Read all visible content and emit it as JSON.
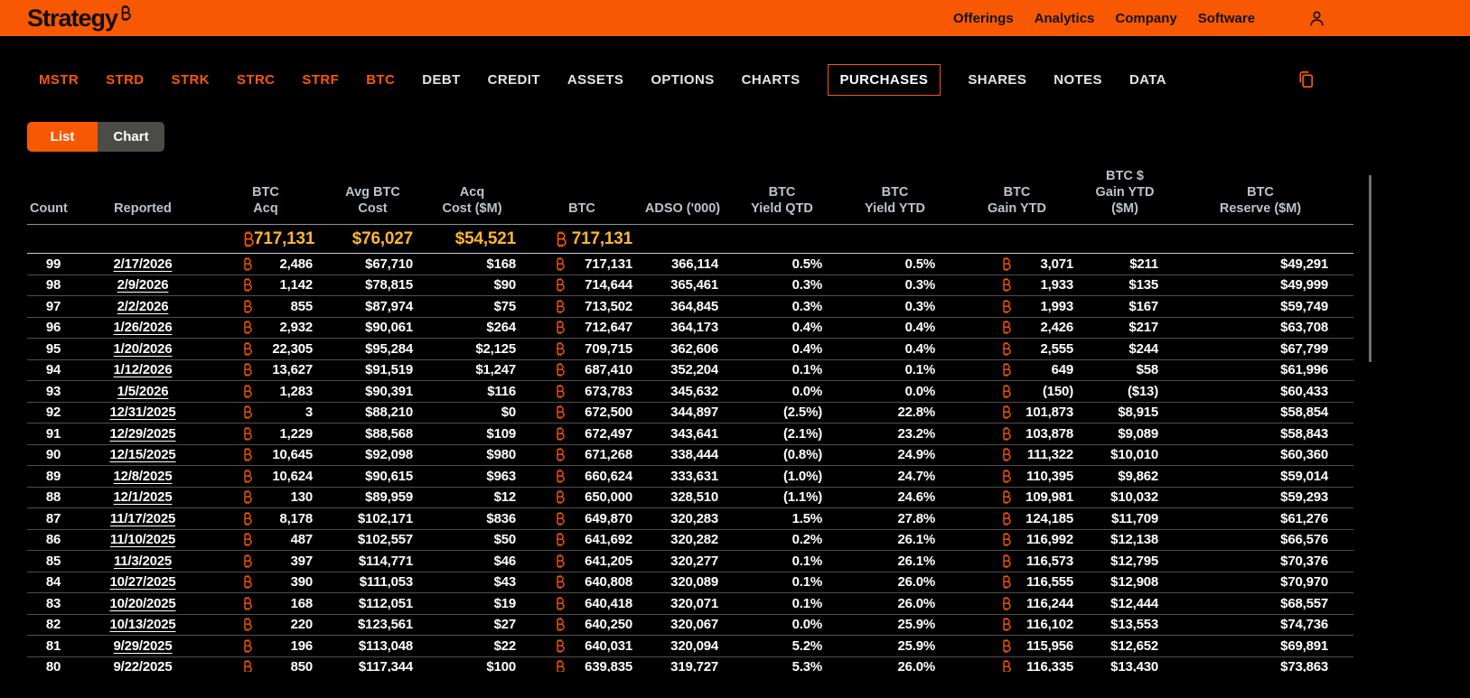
{
  "colors": {
    "accent_orange": "#F95802",
    "summary_gold": "#FFB530"
  },
  "header": {
    "logo_text": "Strategy",
    "nav": [
      {
        "label": "Offerings"
      },
      {
        "label": "Analytics"
      },
      {
        "label": "Company"
      },
      {
        "label": "Software"
      }
    ]
  },
  "tabs": {
    "items": [
      {
        "label": "MSTR",
        "variant": "ticker"
      },
      {
        "label": "STRD",
        "variant": "ticker"
      },
      {
        "label": "STRK",
        "variant": "ticker"
      },
      {
        "label": "STRC",
        "variant": "ticker"
      },
      {
        "label": "STRF",
        "variant": "ticker"
      },
      {
        "label": "BTC",
        "variant": "ticker"
      },
      {
        "label": "DEBT",
        "variant": "plain"
      },
      {
        "label": "CREDIT",
        "variant": "plain"
      },
      {
        "label": "ASSETS",
        "variant": "plain"
      },
      {
        "label": "OPTIONS",
        "variant": "plain"
      },
      {
        "label": "CHARTS",
        "variant": "plain"
      },
      {
        "label": "PURCHASES",
        "variant": "active"
      },
      {
        "label": "SHARES",
        "variant": "plain"
      },
      {
        "label": "NOTES",
        "variant": "plain"
      },
      {
        "label": "DATA",
        "variant": "plain"
      }
    ]
  },
  "toggle": {
    "list_label": "List",
    "chart_label": "Chart"
  },
  "table": {
    "columns": [
      {
        "key": "count",
        "lines": [
          "Count"
        ],
        "type": "text"
      },
      {
        "key": "reported",
        "lines": [
          "Reported"
        ],
        "type": "link"
      },
      {
        "key": "btc_acq",
        "lines": [
          "BTC",
          "Acq"
        ],
        "type": "btc"
      },
      {
        "key": "avg_cost",
        "lines": [
          "Avg BTC",
          "Cost"
        ],
        "type": "num"
      },
      {
        "key": "acq_cost",
        "lines": [
          "Acq",
          "Cost ($M)"
        ],
        "type": "num"
      },
      {
        "key": "btc",
        "lines": [
          "BTC"
        ],
        "type": "btc"
      },
      {
        "key": "adso",
        "lines": [
          "ADSO ('000)"
        ],
        "type": "num"
      },
      {
        "key": "yield_qtd",
        "lines": [
          "BTC",
          "Yield QTD"
        ],
        "type": "num"
      },
      {
        "key": "yield_ytd",
        "lines": [
          "BTC",
          "Yield YTD"
        ],
        "type": "num"
      },
      {
        "key": "gain_btc",
        "lines": [
          "BTC",
          "Gain YTD"
        ],
        "type": "btc"
      },
      {
        "key": "gain_usd",
        "lines": [
          "BTC $",
          "Gain YTD ($M)"
        ],
        "type": "num"
      },
      {
        "key": "reserve",
        "lines": [
          "BTC",
          "Reserve ($M)"
        ],
        "type": "num"
      }
    ],
    "summary": {
      "btc_acq": "717,131",
      "avg_cost": "$76,027",
      "acq_cost": "$54,521",
      "btc": "717,131"
    },
    "rows": [
      {
        "count": "99",
        "reported": "2/17/2026",
        "btc_acq": "2,486",
        "avg_cost": "$67,710",
        "acq_cost": "$168",
        "btc": "717,131",
        "adso": "366,114",
        "yield_qtd": "0.5%",
        "yield_ytd": "0.5%",
        "gain_btc": "3,071",
        "gain_usd": "$211",
        "reserve": "$49,291"
      },
      {
        "count": "98",
        "reported": "2/9/2026",
        "btc_acq": "1,142",
        "avg_cost": "$78,815",
        "acq_cost": "$90",
        "btc": "714,644",
        "adso": "365,461",
        "yield_qtd": "0.3%",
        "yield_ytd": "0.3%",
        "gain_btc": "1,933",
        "gain_usd": "$135",
        "reserve": "$49,999"
      },
      {
        "count": "97",
        "reported": "2/2/2026",
        "btc_acq": "855",
        "avg_cost": "$87,974",
        "acq_cost": "$75",
        "btc": "713,502",
        "adso": "364,845",
        "yield_qtd": "0.3%",
        "yield_ytd": "0.3%",
        "gain_btc": "1,993",
        "gain_usd": "$167",
        "reserve": "$59,749"
      },
      {
        "count": "96",
        "reported": "1/26/2026",
        "btc_acq": "2,932",
        "avg_cost": "$90,061",
        "acq_cost": "$264",
        "btc": "712,647",
        "adso": "364,173",
        "yield_qtd": "0.4%",
        "yield_ytd": "0.4%",
        "gain_btc": "2,426",
        "gain_usd": "$217",
        "reserve": "$63,708"
      },
      {
        "count": "95",
        "reported": "1/20/2026",
        "btc_acq": "22,305",
        "avg_cost": "$95,284",
        "acq_cost": "$2,125",
        "btc": "709,715",
        "adso": "362,606",
        "yield_qtd": "0.4%",
        "yield_ytd": "0.4%",
        "gain_btc": "2,555",
        "gain_usd": "$244",
        "reserve": "$67,799"
      },
      {
        "count": "94",
        "reported": "1/12/2026",
        "btc_acq": "13,627",
        "avg_cost": "$91,519",
        "acq_cost": "$1,247",
        "btc": "687,410",
        "adso": "352,204",
        "yield_qtd": "0.1%",
        "yield_ytd": "0.1%",
        "gain_btc": "649",
        "gain_usd": "$58",
        "reserve": "$61,996"
      },
      {
        "count": "93",
        "reported": "1/5/2026",
        "btc_acq": "1,283",
        "avg_cost": "$90,391",
        "acq_cost": "$116",
        "btc": "673,783",
        "adso": "345,632",
        "yield_qtd": "0.0%",
        "yield_ytd": "0.0%",
        "gain_btc": "(150)",
        "gain_usd": "($13)",
        "reserve": "$60,433"
      },
      {
        "count": "92",
        "reported": "12/31/2025",
        "btc_acq": "3",
        "avg_cost": "$88,210",
        "acq_cost": "$0",
        "btc": "672,500",
        "adso": "344,897",
        "yield_qtd": "(2.5%)",
        "yield_ytd": "22.8%",
        "gain_btc": "101,873",
        "gain_usd": "$8,915",
        "reserve": "$58,854"
      },
      {
        "count": "91",
        "reported": "12/29/2025",
        "btc_acq": "1,229",
        "avg_cost": "$88,568",
        "acq_cost": "$109",
        "btc": "672,497",
        "adso": "343,641",
        "yield_qtd": "(2.1%)",
        "yield_ytd": "23.2%",
        "gain_btc": "103,878",
        "gain_usd": "$9,089",
        "reserve": "$58,843"
      },
      {
        "count": "90",
        "reported": "12/15/2025",
        "btc_acq": "10,645",
        "avg_cost": "$92,098",
        "acq_cost": "$980",
        "btc": "671,268",
        "adso": "338,444",
        "yield_qtd": "(0.8%)",
        "yield_ytd": "24.9%",
        "gain_btc": "111,322",
        "gain_usd": "$10,010",
        "reserve": "$60,360"
      },
      {
        "count": "89",
        "reported": "12/8/2025",
        "btc_acq": "10,624",
        "avg_cost": "$90,615",
        "acq_cost": "$963",
        "btc": "660,624",
        "adso": "333,631",
        "yield_qtd": "(1.0%)",
        "yield_ytd": "24.7%",
        "gain_btc": "110,395",
        "gain_usd": "$9,862",
        "reserve": "$59,014"
      },
      {
        "count": "88",
        "reported": "12/1/2025",
        "btc_acq": "130",
        "avg_cost": "$89,959",
        "acq_cost": "$12",
        "btc": "650,000",
        "adso": "328,510",
        "yield_qtd": "(1.1%)",
        "yield_ytd": "24.6%",
        "gain_btc": "109,981",
        "gain_usd": "$10,032",
        "reserve": "$59,293"
      },
      {
        "count": "87",
        "reported": "11/17/2025",
        "btc_acq": "8,178",
        "avg_cost": "$102,171",
        "acq_cost": "$836",
        "btc": "649,870",
        "adso": "320,283",
        "yield_qtd": "1.5%",
        "yield_ytd": "27.8%",
        "gain_btc": "124,185",
        "gain_usd": "$11,709",
        "reserve": "$61,276"
      },
      {
        "count": "86",
        "reported": "11/10/2025",
        "btc_acq": "487",
        "avg_cost": "$102,557",
        "acq_cost": "$50",
        "btc": "641,692",
        "adso": "320,282",
        "yield_qtd": "0.2%",
        "yield_ytd": "26.1%",
        "gain_btc": "116,992",
        "gain_usd": "$12,138",
        "reserve": "$66,576"
      },
      {
        "count": "85",
        "reported": "11/3/2025",
        "btc_acq": "397",
        "avg_cost": "$114,771",
        "acq_cost": "$46",
        "btc": "641,205",
        "adso": "320,277",
        "yield_qtd": "0.1%",
        "yield_ytd": "26.1%",
        "gain_btc": "116,573",
        "gain_usd": "$12,795",
        "reserve": "$70,376"
      },
      {
        "count": "84",
        "reported": "10/27/2025",
        "btc_acq": "390",
        "avg_cost": "$111,053",
        "acq_cost": "$43",
        "btc": "640,808",
        "adso": "320,089",
        "yield_qtd": "0.1%",
        "yield_ytd": "26.0%",
        "gain_btc": "116,555",
        "gain_usd": "$12,908",
        "reserve": "$70,970"
      },
      {
        "count": "83",
        "reported": "10/20/2025",
        "btc_acq": "168",
        "avg_cost": "$112,051",
        "acq_cost": "$19",
        "btc": "640,418",
        "adso": "320,071",
        "yield_qtd": "0.1%",
        "yield_ytd": "26.0%",
        "gain_btc": "116,244",
        "gain_usd": "$12,444",
        "reserve": "$68,557"
      },
      {
        "count": "82",
        "reported": "10/13/2025",
        "btc_acq": "220",
        "avg_cost": "$123,561",
        "acq_cost": "$27",
        "btc": "640,250",
        "adso": "320,067",
        "yield_qtd": "0.0%",
        "yield_ytd": "25.9%",
        "gain_btc": "116,102",
        "gain_usd": "$13,553",
        "reserve": "$74,736"
      },
      {
        "count": "81",
        "reported": "9/29/2025",
        "btc_acq": "196",
        "avg_cost": "$113,048",
        "acq_cost": "$22",
        "btc": "640,031",
        "adso": "320,094",
        "yield_qtd": "5.2%",
        "yield_ytd": "25.9%",
        "gain_btc": "115,956",
        "gain_usd": "$12,652",
        "reserve": "$69,891"
      },
      {
        "count": "80",
        "reported": "9/22/2025",
        "btc_acq": "850",
        "avg_cost": "$117,344",
        "acq_cost": "$100",
        "btc": "639,835",
        "adso": "319,727",
        "yield_qtd": "5.3%",
        "yield_ytd": "26.0%",
        "gain_btc": "116,335",
        "gain_usd": "$13,430",
        "reserve": "$73,863"
      }
    ]
  }
}
